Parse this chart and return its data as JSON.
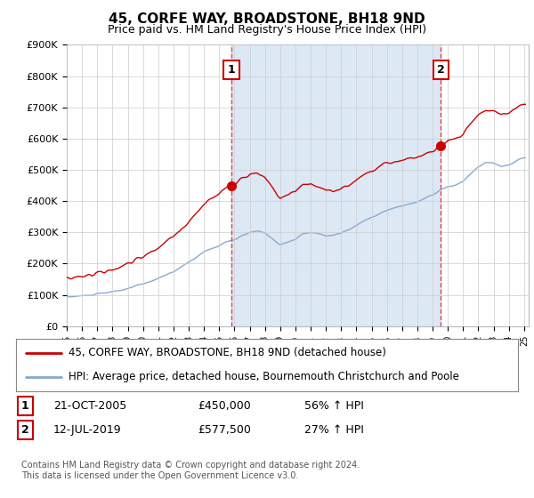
{
  "title": "45, CORFE WAY, BROADSTONE, BH18 9ND",
  "subtitle": "Price paid vs. HM Land Registry's House Price Index (HPI)",
  "ylabel_ticks": [
    "£0",
    "£100K",
    "£200K",
    "£300K",
    "£400K",
    "£500K",
    "£600K",
    "£700K",
    "£800K",
    "£900K"
  ],
  "ylim": [
    0,
    900000
  ],
  "xlim_start": 1995.0,
  "xlim_end": 2025.3,
  "red_line_color": "#cc0000",
  "blue_line_color": "#88aacc",
  "blue_fill_color": "#dde8f5",
  "dashed_line_color": "#dd4444",
  "marker1_x": 2005.8,
  "marker1_y": 450000,
  "marker1_label": "1",
  "marker2_x": 2019.54,
  "marker2_y": 577500,
  "marker2_label": "2",
  "legend_line1": "45, CORFE WAY, BROADSTONE, BH18 9ND (detached house)",
  "legend_line2": "HPI: Average price, detached house, Bournemouth Christchurch and Poole",
  "table_row1": [
    "1",
    "21-OCT-2005",
    "£450,000",
    "56% ↑ HPI"
  ],
  "table_row2": [
    "2",
    "12-JUL-2019",
    "£577,500",
    "27% ↑ HPI"
  ],
  "footnote": "Contains HM Land Registry data © Crown copyright and database right 2024.\nThis data is licensed under the Open Government Licence v3.0.",
  "background_color": "#ffffff",
  "plot_bg_color": "#ffffff",
  "grid_color": "#cccccc"
}
